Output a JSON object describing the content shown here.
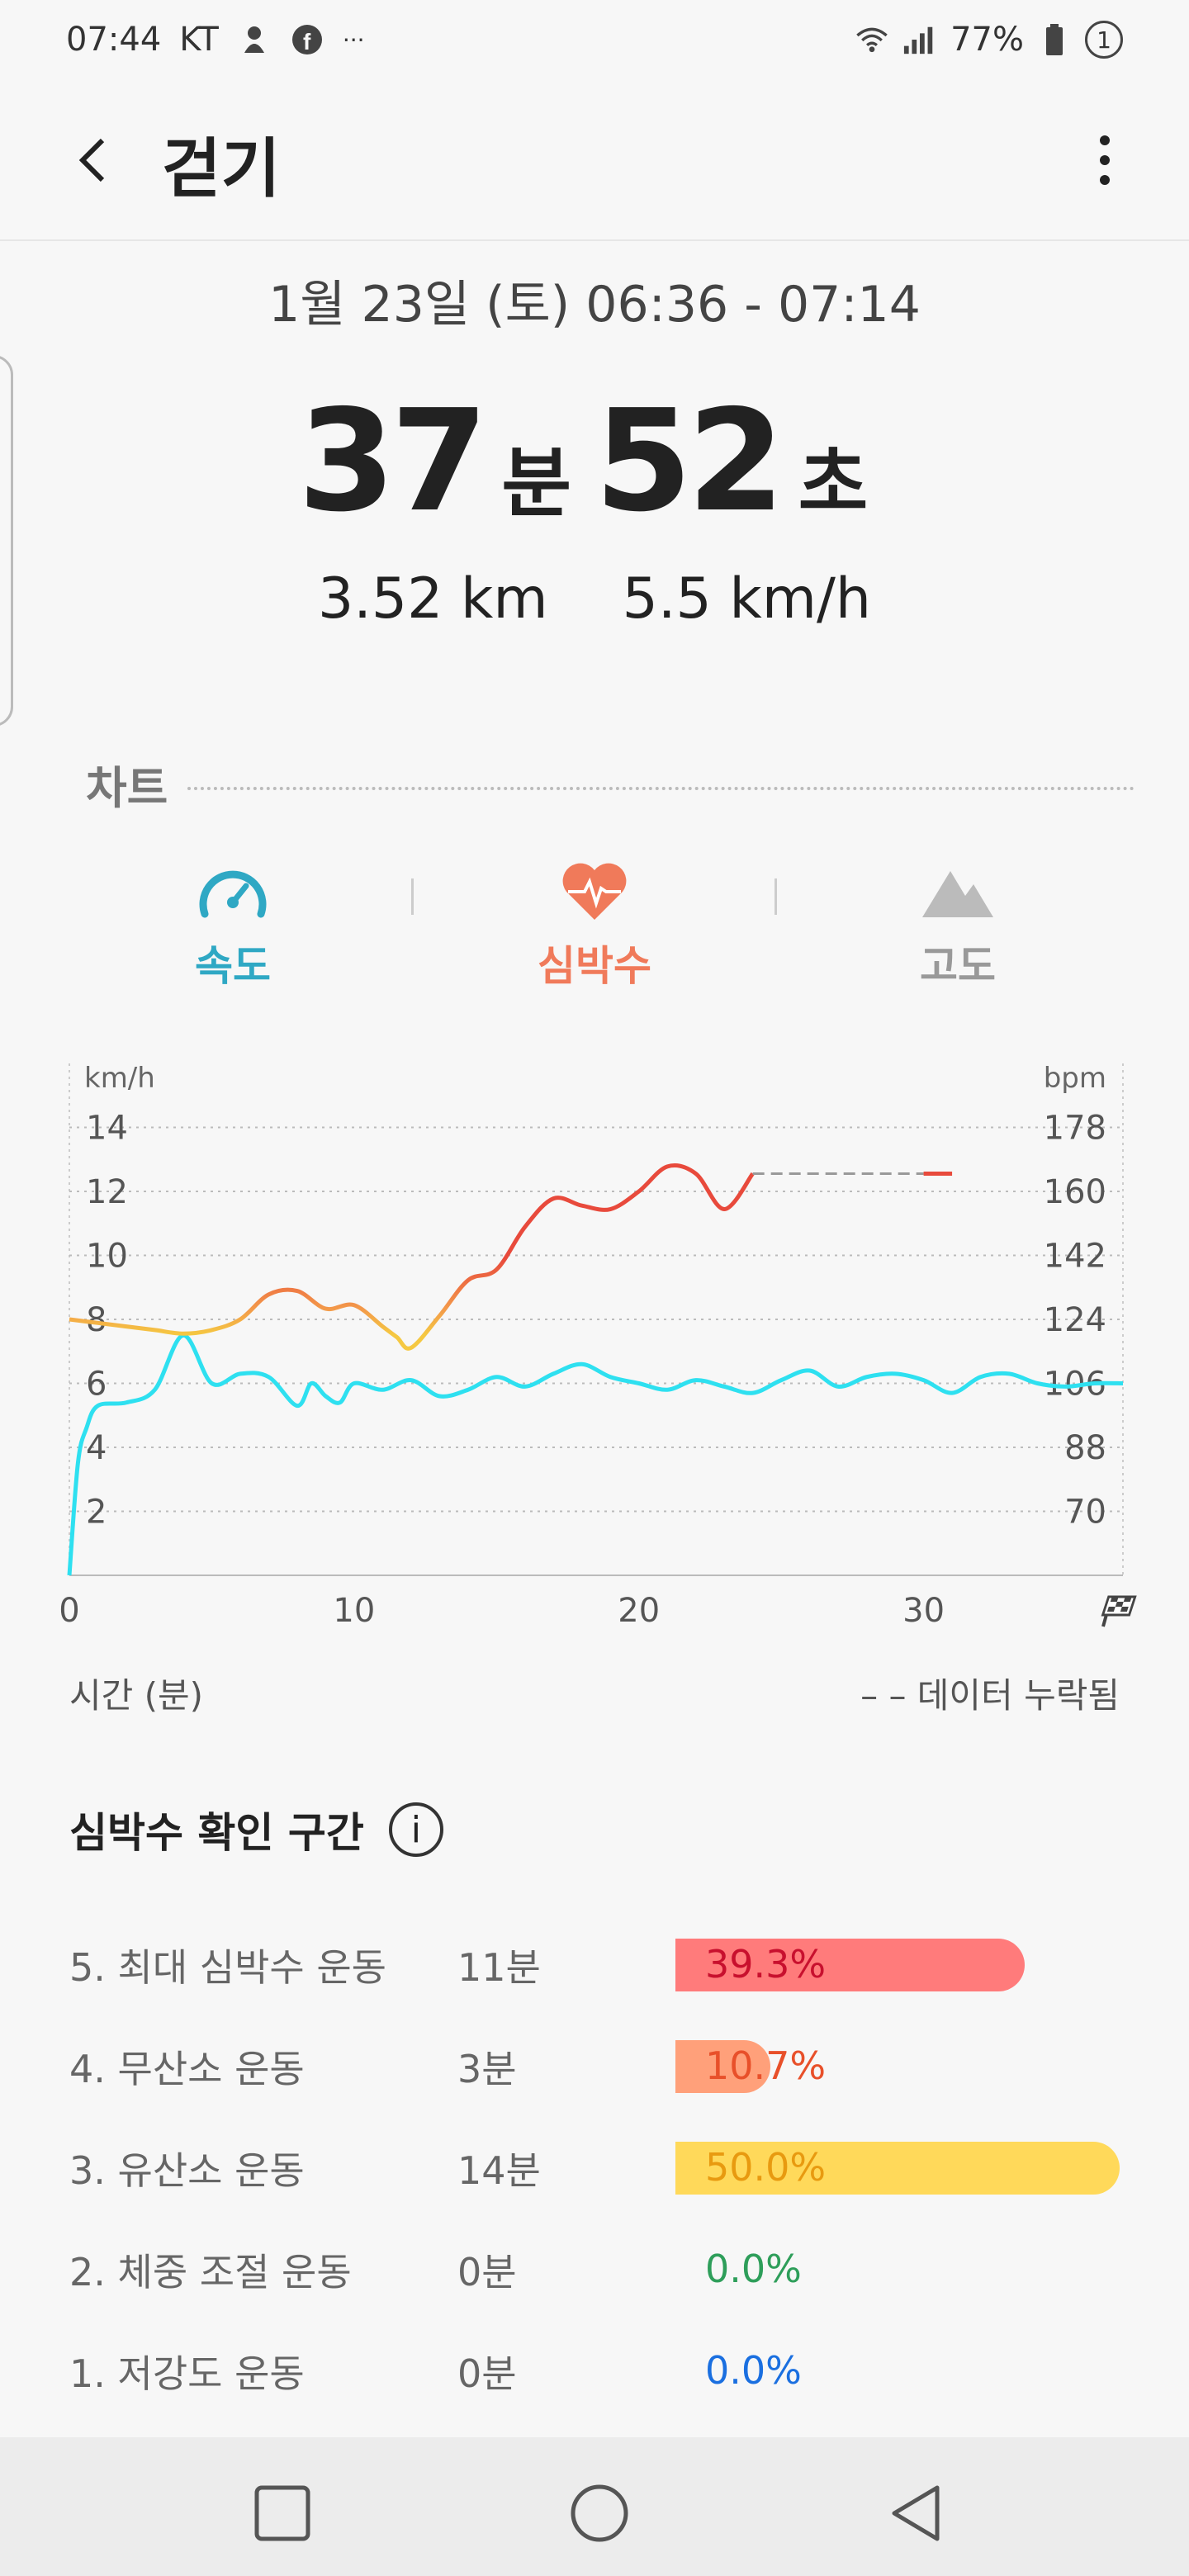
{
  "status": {
    "time": "07:44",
    "carrier": "KT",
    "battery": "77%",
    "notification_count": "1",
    "ellipsis": "···",
    "icons": [
      "mascot-icon",
      "facebook-icon",
      "wifi-icon",
      "signal-icon",
      "battery-icon"
    ]
  },
  "header": {
    "title": "걷기",
    "back_icon": "back-chevron-icon",
    "menu_icon": "more-vert-icon"
  },
  "summary": {
    "date": "1월 23일 (토) 06:36 - 07:14",
    "minutes": "37",
    "minutes_unit": "분",
    "seconds": "52",
    "seconds_unit": "초",
    "distance": "3.52 km",
    "speed": "5.5 km/h"
  },
  "chart_section": {
    "label": "차트"
  },
  "tabs": [
    {
      "label": "속도",
      "icon": "speedometer-icon",
      "color": "#2fa8c4"
    },
    {
      "label": "심박수",
      "icon": "heart-rate-icon",
      "color": "#f07a5a"
    },
    {
      "label": "고도",
      "icon": "mountain-icon",
      "color": "#999999"
    }
  ],
  "chart_data": {
    "type": "line",
    "left_axis_label": "km/h",
    "right_axis_label": "bpm",
    "y_left_ticks": [
      "14",
      "12",
      "10",
      "8",
      "6",
      "4",
      "2"
    ],
    "y_right_ticks": [
      "178",
      "160",
      "142",
      "124",
      "106",
      "88",
      "70"
    ],
    "x_ticks": [
      "0",
      "10",
      "20",
      "30"
    ],
    "xlim": [
      0,
      37
    ],
    "ylim_left": [
      0,
      16
    ],
    "ylim_right": [
      52,
      196
    ],
    "finish_icon": "checkered-flag-icon",
    "series": [
      {
        "axis": "left",
        "color": "#2ee0f0",
        "x": [
          0,
          0.3,
          0.6,
          1,
          2,
          3,
          4,
          5,
          6,
          7,
          8,
          8.5,
          9,
          9.5,
          10,
          11,
          12,
          13,
          14,
          15,
          16,
          17,
          18,
          19,
          20,
          21,
          22,
          23,
          24,
          25,
          26,
          27,
          28,
          29,
          30,
          31,
          32,
          33,
          34,
          35,
          36,
          37
        ],
        "y": [
          0,
          3.5,
          4.6,
          5.3,
          5.4,
          5.8,
          7.5,
          6.0,
          6.3,
          6.2,
          5.3,
          6.0,
          5.6,
          5.4,
          6.0,
          5.8,
          6.1,
          5.6,
          5.8,
          6.2,
          5.9,
          6.3,
          6.6,
          6.2,
          6.0,
          5.8,
          6.1,
          5.9,
          5.7,
          6.1,
          6.4,
          5.9,
          6.2,
          6.3,
          6.1,
          5.7,
          6.2,
          6.3,
          6.0,
          5.9,
          6.0,
          6.0
        ]
      },
      {
        "axis": "right",
        "color_segments": [
          "#f5c842",
          "#f39a4a",
          "#e84a3c"
        ],
        "x": [
          0,
          1,
          2,
          3,
          4,
          5,
          6,
          7,
          8,
          9,
          10,
          11,
          11.5,
          12,
          13,
          14,
          15,
          16,
          17,
          18,
          19,
          20,
          21,
          22,
          23,
          24
        ],
        "y": [
          124,
          123,
          122,
          121,
          120,
          121,
          124,
          131,
          132,
          127,
          128,
          122,
          119,
          116,
          125,
          135,
          138,
          150,
          158,
          156,
          155,
          160,
          167,
          165,
          155,
          165
        ]
      }
    ],
    "missing_segment": {
      "x_start": 24,
      "x_end": 31,
      "y": 165
    },
    "time_axis_label": "시간 (분)",
    "missing_legend": "– – 데이터 누락됨"
  },
  "zones": {
    "title": "심박수 확인 구간",
    "info_icon": "info-icon",
    "items": [
      {
        "name": "5. 최대 심박수 운동",
        "time": "11분",
        "percent": "39.3%",
        "fraction": 0.393,
        "bar_color": "#ff7b7b",
        "text_color": "#c8102e"
      },
      {
        "name": "4. 무산소 운동",
        "time": "3분",
        "percent": "10.7%",
        "fraction": 0.107,
        "bar_color": "#ffa07a",
        "text_color": "#e8502a"
      },
      {
        "name": "3. 유산소 운동",
        "time": "14분",
        "percent": "50.0%",
        "fraction": 0.5,
        "bar_color": "#ffd95a",
        "text_color": "#e89a10"
      },
      {
        "name": "2. 체중 조절 운동",
        "time": "0분",
        "percent": "0.0%",
        "fraction": 0.0,
        "bar_color": "#2e9e5a",
        "text_color": "#2e9e5a"
      },
      {
        "name": "1. 저강도 운동",
        "time": "0분",
        "percent": "0.0%",
        "fraction": 0.0,
        "bar_color": "#1a6fe0",
        "text_color": "#1a6fe0"
      }
    ]
  },
  "navbar": {
    "icons": [
      "recents-icon",
      "home-icon",
      "back-icon"
    ]
  }
}
